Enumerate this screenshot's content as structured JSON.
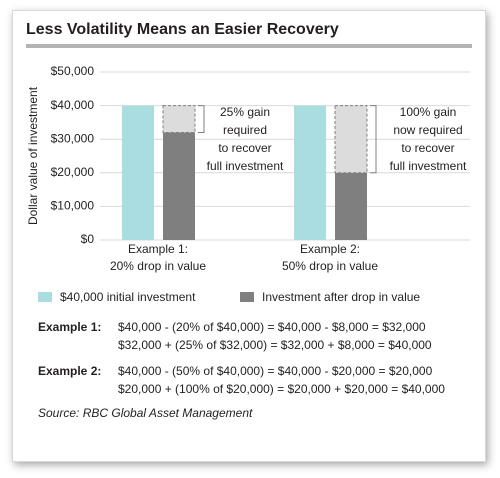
{
  "chart_data": {
    "type": "bar",
    "title": "Less Volatility Means an Easier Recovery",
    "y_label": "Dollar value of investment",
    "categories": [
      [
        "Example 1:",
        "20% drop in value"
      ],
      [
        "Example 2:",
        "50% drop in value"
      ]
    ],
    "series": [
      {
        "name": "$40,000 initial investment",
        "color": "#a9dde0",
        "values": [
          40000,
          40000
        ]
      },
      {
        "name": "Investment after drop in value",
        "color": "#7f7f7f",
        "values": [
          32000,
          20000
        ]
      }
    ],
    "annotations": [
      [
        "25% gain",
        "required",
        "to recover",
        "full investment"
      ],
      [
        "100% gain",
        "now required",
        "to recover",
        "full investment"
      ]
    ],
    "ylim": [
      0,
      50000
    ],
    "yticks": [
      {
        "value": 0,
        "label": "$0"
      },
      {
        "value": 10000,
        "label": "$10,000"
      },
      {
        "value": 20000,
        "label": "$20,000"
      },
      {
        "value": 30000,
        "label": "$30,000"
      },
      {
        "value": 40000,
        "label": "$40,000"
      },
      {
        "value": 50000,
        "label": "$50,000"
      }
    ],
    "grid": true
  },
  "notes": [
    {
      "label": "Example 1:",
      "lines": [
        "$40,000 - (20% of $40,000) = $40,000 - $8,000 = $32,000",
        "$32,000 + (25% of $32,000) = $32,000 + $8,000 = $40,000"
      ]
    },
    {
      "label": "Example 2:",
      "lines": [
        "$40,000 - (50% of $40,000) = $40,000 - $20,000 = $20,000",
        "$20,000 + (100% of $20,000) = $20,000 + $20,000 = $40,000"
      ]
    }
  ],
  "source": "Source: RBC Global Asset Management"
}
